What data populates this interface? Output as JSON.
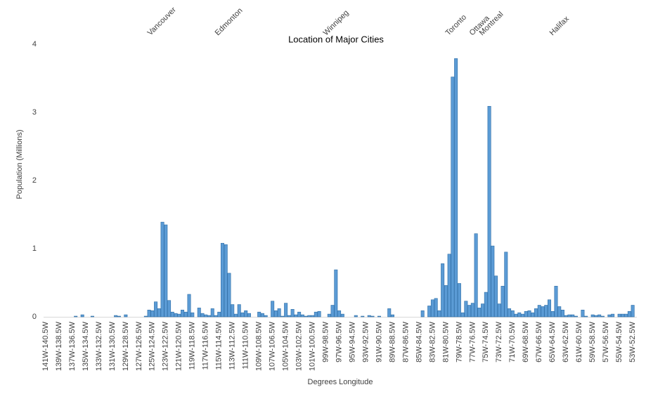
{
  "chart_data": {
    "type": "bar",
    "title": "Location of Major Cities",
    "x_label": "Degrees Longitude",
    "y_label": "Population (Millions)",
    "annotations": [
      "Vancouver",
      "Edmonton",
      "Winnipeg",
      "Toronto",
      "Ottawa",
      "Montreal",
      "Halifax"
    ],
    "color": "#5b9bd5",
    "ylim": [
      0,
      4
    ],
    "yticks": [
      0,
      1,
      2,
      3,
      4
    ],
    "grid": false,
    "categories": [
      "141W-140.5W",
      null,
      null,
      null,
      "139W-138.5W",
      null,
      null,
      null,
      "137W-136.5W",
      null,
      null,
      null,
      "135W-134.5W",
      null,
      null,
      null,
      "133W-132.5W",
      null,
      null,
      null,
      "131W-130.5W",
      null,
      null,
      null,
      "129W-128.5W",
      null,
      null,
      null,
      "127W-126.5W",
      null,
      null,
      null,
      "125W-124.5W",
      null,
      null,
      null,
      "123W-122.5W",
      null,
      null,
      null,
      "121W-120.5W",
      null,
      null,
      null,
      "119W-118.5W",
      null,
      null,
      null,
      "117W-116.5W",
      null,
      null,
      null,
      "115W-114.5W",
      null,
      null,
      null,
      "113W-112.5W",
      null,
      null,
      null,
      "111W-110.5W",
      null,
      null,
      null,
      "109W-108.5W",
      null,
      null,
      null,
      "107W-106.5W",
      null,
      null,
      null,
      "105W-104.5W",
      null,
      null,
      null,
      "103W-102.5W",
      null,
      null,
      null,
      "101W-100.5W",
      null,
      null,
      null,
      "99W-98.5W",
      null,
      null,
      null,
      "97W-96.5W",
      null,
      null,
      null,
      "95W-94.5W",
      null,
      null,
      null,
      "93W-92.5W",
      null,
      null,
      null,
      "91W-90.5W",
      null,
      null,
      null,
      "89W-88.5W",
      null,
      null,
      null,
      "87W-86.5W",
      null,
      null,
      null,
      "85W-84.5W",
      null,
      null,
      null,
      "83W-82.5W",
      null,
      null,
      null,
      "81W-80.5W",
      null,
      null,
      null,
      "79W-78.5W",
      null,
      null,
      null,
      "77W-76.5W",
      null,
      null,
      null,
      "75W-74.5W",
      null,
      null,
      null,
      "73W-72.5W",
      null,
      null,
      null,
      "71W-70.5W",
      null,
      null,
      null,
      "69W-68.5W",
      null,
      null,
      null,
      "67W-66.5W",
      null,
      null,
      null,
      "65W-64.5W",
      null,
      null,
      null,
      "63W-62.5W",
      null,
      null,
      null,
      "61W-60.5W",
      null,
      null,
      null,
      "59W-58.5W",
      null,
      null,
      null,
      "57W-56.5W",
      null,
      null,
      null,
      "55W-54.5W",
      null,
      null,
      null,
      "53W-52.5W"
    ],
    "values": [
      0,
      0,
      0,
      0,
      0,
      0,
      0,
      0,
      0,
      0.01,
      0,
      0.03,
      0,
      0,
      0.01,
      0,
      0,
      0,
      0,
      0,
      0,
      0.02,
      0.01,
      0,
      0.03,
      0,
      0,
      0,
      0,
      0,
      0.01,
      0.1,
      0.09,
      0.22,
      0.12,
      1.39,
      1.35,
      0.24,
      0.07,
      0.05,
      0.04,
      0.1,
      0.07,
      0.33,
      0.06,
      0,
      0.13,
      0.05,
      0.03,
      0.02,
      0.12,
      0.02,
      0.07,
      1.08,
      1.06,
      0.64,
      0.18,
      0.04,
      0.18,
      0.06,
      0.09,
      0.05,
      0,
      0,
      0.07,
      0.05,
      0.02,
      0,
      0.23,
      0.09,
      0.12,
      0.01,
      0.2,
      0.02,
      0.11,
      0.03,
      0.07,
      0.03,
      0.01,
      0.02,
      0.02,
      0.07,
      0.08,
      0,
      0,
      0.04,
      0.17,
      0.69,
      0.09,
      0.04,
      0,
      0,
      0,
      0.02,
      0,
      0.01,
      0,
      0.02,
      0.01,
      0,
      0.01,
      0,
      0,
      0.12,
      0.03,
      0,
      0,
      0,
      0,
      0,
      0,
      0,
      0,
      0.09,
      0,
      0.16,
      0.25,
      0.27,
      0.09,
      0.78,
      0.46,
      0.92,
      3.52,
      3.79,
      0.49,
      0.06,
      0.23,
      0.17,
      0.2,
      1.22,
      0.13,
      0.19,
      0.36,
      3.09,
      1.04,
      0.6,
      0.19,
      0.45,
      0.95,
      0.12,
      0.09,
      0.04,
      0.06,
      0.04,
      0.08,
      0.09,
      0.06,
      0.12,
      0.17,
      0.15,
      0.17,
      0.25,
      0.08,
      0.45,
      0.15,
      0.1,
      0.02,
      0.03,
      0.03,
      0.01,
      0,
      0.1,
      0.01,
      0,
      0.03,
      0.02,
      0.03,
      0.01,
      0,
      0.03,
      0.04,
      0,
      0.04,
      0.04,
      0.04,
      0.08,
      0.17
    ]
  }
}
